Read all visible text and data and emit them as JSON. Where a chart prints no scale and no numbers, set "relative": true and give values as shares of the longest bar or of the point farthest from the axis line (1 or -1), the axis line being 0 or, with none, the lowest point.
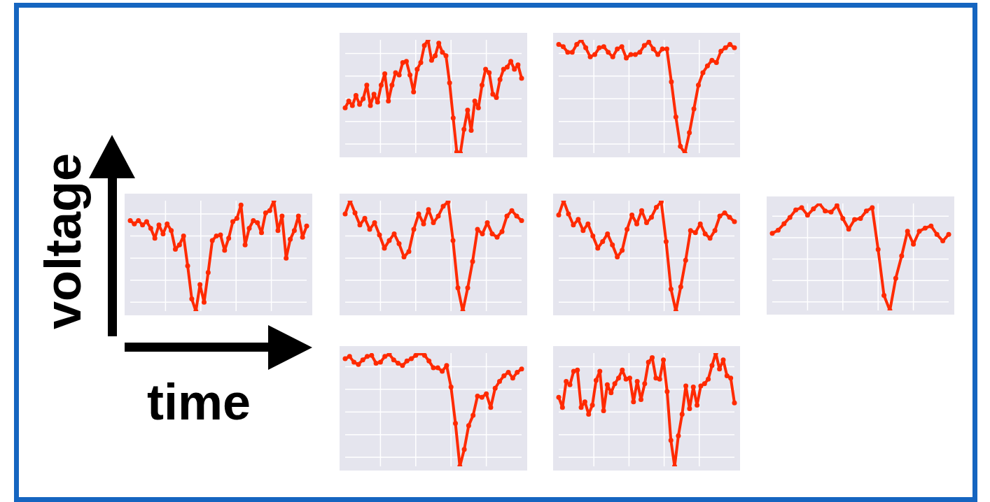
{
  "chart_data": [
    {
      "type": "line",
      "relative": true,
      "grid": true,
      "marker": "circle",
      "categories": [
        null,
        null,
        null,
        null,
        null,
        null,
        null,
        null,
        null,
        null,
        null,
        null,
        null,
        null,
        null,
        null,
        null,
        null,
        null,
        null,
        null,
        null,
        null,
        null,
        null,
        null,
        null,
        null,
        null,
        null,
        null,
        null,
        null,
        null,
        null,
        null,
        null,
        null,
        null,
        null,
        null,
        null,
        null,
        null,
        null,
        null,
        null,
        null,
        null,
        null
      ],
      "series": [
        {
          "color": "#ff2a00",
          "values": [
            0.4,
            0.46,
            0.42,
            0.51,
            0.43,
            0.48,
            0.6,
            0.42,
            0.52,
            0.45,
            0.6,
            0.7,
            0.46,
            0.6,
            0.71,
            0.69,
            0.8,
            0.81,
            0.69,
            0.54,
            0.74,
            0.8,
            0.95,
            1.0,
            0.82,
            0.86,
            0.97,
            0.89,
            0.86,
            0.62,
            0.31,
            0.01,
            0,
            0.21,
            0.38,
            0.2,
            0.46,
            0.4,
            0.6,
            0.74,
            0.71,
            0.52,
            0.49,
            0.65,
            0.74,
            0.76,
            0.81,
            0.74,
            0.78,
            0.66
          ]
        }
      ]
    },
    {
      "type": "line",
      "relative": true,
      "grid": true,
      "marker": "circle",
      "categories": [
        null,
        null,
        null,
        null,
        null,
        null,
        null,
        null,
        null,
        null,
        null,
        null,
        null,
        null,
        null,
        null,
        null,
        null,
        null,
        null,
        null,
        null,
        null,
        null,
        null,
        null,
        null,
        null,
        null,
        null,
        null,
        null,
        null,
        null,
        null,
        null,
        null,
        null,
        null,
        null
      ],
      "series": [
        {
          "color": "#ff2a00",
          "values": [
            0.96,
            0.94,
            0.89,
            0.89,
            0.96,
            1.0,
            0.93,
            0.85,
            0.87,
            0.93,
            0.94,
            0.89,
            0.85,
            0.92,
            0.94,
            0.84,
            0.87,
            0.87,
            0.89,
            0.95,
            0.98,
            0.92,
            0.87,
            0.92,
            0.92,
            0.63,
            0.32,
            0.06,
            0,
            0.18,
            0.39,
            0.6,
            0.71,
            0.77,
            0.82,
            0.8,
            0.9,
            0.93,
            0.96,
            0.93
          ]
        }
      ]
    },
    {
      "type": "line",
      "relative": true,
      "grid": true,
      "marker": "circle",
      "xlabel": "time",
      "ylabel": "voltage",
      "categories": [
        null,
        null,
        null,
        null,
        null,
        null,
        null,
        null,
        null,
        null,
        null,
        null,
        null,
        null,
        null,
        null,
        null,
        null,
        null,
        null,
        null,
        null,
        null,
        null,
        null,
        null,
        null,
        null,
        null,
        null,
        null,
        null,
        null,
        null,
        null,
        null,
        null,
        null,
        null,
        null,
        null,
        null,
        null,
        null
      ],
      "series": [
        {
          "color": "#ff2a00",
          "values": [
            0.82,
            0.79,
            0.82,
            0.78,
            0.81,
            0.75,
            0.66,
            0.78,
            0.7,
            0.79,
            0.73,
            0.56,
            0.6,
            0.68,
            0.41,
            0.11,
            0,
            0.24,
            0.08,
            0.35,
            0.64,
            0.68,
            0.69,
            0.55,
            0.66,
            0.81,
            0.84,
            0.96,
            0.6,
            0.75,
            0.82,
            0.8,
            0.71,
            0.89,
            0.91,
            1.0,
            0.73,
            0.86,
            0.48,
            0.65,
            0.73,
            0.86,
            0.67,
            0.77
          ]
        }
      ]
    },
    {
      "type": "line",
      "relative": true,
      "grid": true,
      "marker": "circle",
      "categories": [
        null,
        null,
        null,
        null,
        null,
        null,
        null,
        null,
        null,
        null,
        null,
        null,
        null,
        null,
        null,
        null,
        null,
        null,
        null,
        null,
        null,
        null,
        null,
        null,
        null,
        null,
        null,
        null,
        null,
        null,
        null,
        null,
        null,
        null,
        null,
        null,
        null
      ],
      "series": [
        {
          "color": "#ff2a00",
          "values": [
            0.88,
            1.0,
            0.89,
            0.78,
            0.84,
            0.74,
            0.8,
            0.69,
            0.57,
            0.64,
            0.7,
            0.61,
            0.49,
            0.54,
            0.74,
            0.88,
            0.79,
            0.92,
            0.8,
            0.86,
            0.95,
            0.99,
            0.64,
            0.21,
            0,
            0.21,
            0.45,
            0.74,
            0.7,
            0.8,
            0.7,
            0.67,
            0.72,
            0.86,
            0.91,
            0.86,
            0.82
          ]
        }
      ]
    },
    {
      "type": "line",
      "relative": true,
      "grid": true,
      "marker": "circle",
      "categories": [
        null,
        null,
        null,
        null,
        null,
        null,
        null,
        null,
        null,
        null,
        null,
        null,
        null,
        null,
        null,
        null,
        null,
        null,
        null,
        null,
        null,
        null,
        null,
        null,
        null,
        null,
        null,
        null,
        null,
        null,
        null,
        null,
        null,
        null,
        null,
        null,
        null
      ],
      "series": [
        {
          "color": "#ff2a00",
          "values": [
            0.87,
            1.0,
            0.88,
            0.78,
            0.83,
            0.73,
            0.79,
            0.68,
            0.57,
            0.63,
            0.7,
            0.6,
            0.49,
            0.55,
            0.74,
            0.87,
            0.79,
            0.91,
            0.8,
            0.85,
            0.94,
            0.99,
            0.63,
            0.2,
            0,
            0.22,
            0.46,
            0.73,
            0.71,
            0.79,
            0.7,
            0.66,
            0.73,
            0.86,
            0.89,
            0.85,
            0.81
          ]
        }
      ]
    },
    {
      "type": "line",
      "relative": true,
      "grid": true,
      "marker": "circle",
      "categories": [
        null,
        null,
        null,
        null,
        null,
        null,
        null,
        null,
        null,
        null,
        null,
        null,
        null,
        null,
        null,
        null,
        null,
        null,
        null,
        null,
        null,
        null,
        null,
        null,
        null,
        null,
        null,
        null,
        null,
        null,
        null
      ],
      "series": [
        {
          "color": "#ff2a00",
          "values": [
            0.72,
            0.75,
            0.81,
            0.87,
            0.94,
            0.96,
            0.89,
            0.95,
            1.0,
            0.93,
            0.92,
            0.98,
            0.86,
            0.76,
            0.85,
            0.86,
            0.93,
            0.96,
            0.57,
            0.14,
            0,
            0.3,
            0.51,
            0.74,
            0.62,
            0.74,
            0.77,
            0.79,
            0.71,
            0.65,
            0.71
          ]
        }
      ]
    },
    {
      "type": "line",
      "relative": true,
      "grid": true,
      "marker": "circle",
      "categories": [
        null,
        null,
        null,
        null,
        null,
        null,
        null,
        null,
        null,
        null,
        null,
        null,
        null,
        null,
        null,
        null,
        null,
        null,
        null,
        null,
        null,
        null,
        null,
        null,
        null,
        null,
        null,
        null,
        null,
        null,
        null,
        null,
        null,
        null,
        null,
        null,
        null,
        null,
        null,
        null,
        null
      ],
      "series": [
        {
          "color": "#ff2a00",
          "values": [
            0.95,
            0.97,
            0.92,
            0.9,
            0.94,
            0.97,
            0.98,
            0.91,
            0.92,
            0.97,
            0.99,
            0.94,
            0.91,
            0.89,
            0.93,
            0.95,
            0.98,
            1.0,
            0.98,
            0.93,
            0.87,
            0.87,
            0.84,
            0.89,
            0.7,
            0.38,
            0,
            0.15,
            0.36,
            0.45,
            0.62,
            0.61,
            0.64,
            0.52,
            0.69,
            0.75,
            0.8,
            0.83,
            0.78,
            0.83,
            0.86
          ]
        }
      ]
    },
    {
      "type": "line",
      "relative": true,
      "grid": true,
      "marker": "circle",
      "categories": [
        null,
        null,
        null,
        null,
        null,
        null,
        null,
        null,
        null,
        null,
        null,
        null,
        null,
        null,
        null,
        null,
        null,
        null,
        null,
        null,
        null,
        null,
        null,
        null,
        null,
        null,
        null,
        null,
        null,
        null,
        null,
        null,
        null,
        null,
        null,
        null,
        null,
        null,
        null,
        null,
        null,
        null,
        null,
        null,
        null,
        null,
        null,
        null
      ],
      "series": [
        {
          "color": "#ff2a00",
          "values": [
            0.61,
            0.52,
            0.75,
            0.72,
            0.84,
            0.85,
            0.52,
            0.57,
            0.46,
            0.54,
            0.76,
            0.84,
            0.49,
            0.72,
            0.65,
            0.73,
            0.78,
            0.85,
            0.77,
            0.78,
            0.57,
            0.75,
            0.59,
            0.73,
            0.92,
            0.96,
            0.78,
            0.77,
            0.94,
            0.66,
            0.23,
            0,
            0.27,
            0.46,
            0.71,
            0.51,
            0.7,
            0.54,
            0.71,
            0.73,
            0.77,
            0.89,
            1.0,
            0.86,
            0.94,
            0.8,
            0.78,
            0.56
          ]
        }
      ]
    }
  ]
}
